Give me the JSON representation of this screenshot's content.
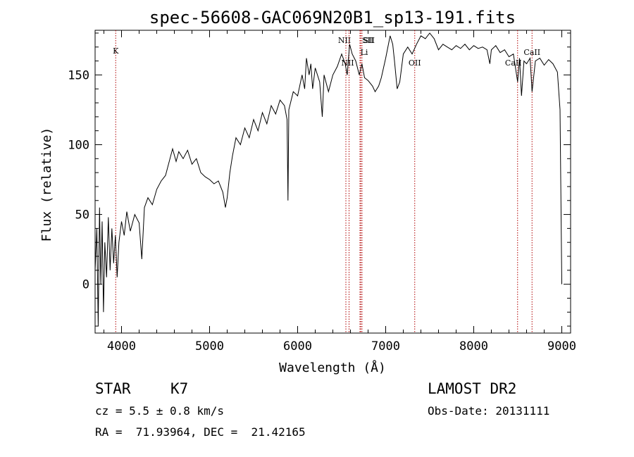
{
  "chart_data": {
    "type": "line",
    "title": "spec-56608-GAC069N20B1_sp13-191.fits",
    "xlabel": "Wavelength (Å)",
    "ylabel": "Flux (relative)",
    "xlim": [
      3700,
      9100
    ],
    "ylim": [
      -35,
      182
    ],
    "x_ticks": [
      4000,
      5000,
      6000,
      7000,
      8000,
      9000
    ],
    "y_ticks": [
      0,
      50,
      100,
      150
    ],
    "grid": false,
    "series": [
      {
        "color": "#000000",
        "points": [
          [
            3700,
            10
          ],
          [
            3720,
            40
          ],
          [
            3735,
            -30
          ],
          [
            3750,
            55
          ],
          [
            3765,
            0
          ],
          [
            3780,
            45
          ],
          [
            3795,
            -20
          ],
          [
            3810,
            30
          ],
          [
            3830,
            5
          ],
          [
            3850,
            48
          ],
          [
            3870,
            10
          ],
          [
            3890,
            40
          ],
          [
            3910,
            15
          ],
          [
            3930,
            35
          ],
          [
            3950,
            5
          ],
          [
            3970,
            30
          ],
          [
            4000,
            45
          ],
          [
            4030,
            35
          ],
          [
            4060,
            52
          ],
          [
            4100,
            38
          ],
          [
            4150,
            50
          ],
          [
            4200,
            44
          ],
          [
            4230,
            18
          ],
          [
            4260,
            55
          ],
          [
            4300,
            62
          ],
          [
            4350,
            57
          ],
          [
            4400,
            68
          ],
          [
            4450,
            74
          ],
          [
            4500,
            78
          ],
          [
            4550,
            90
          ],
          [
            4580,
            97
          ],
          [
            4620,
            88
          ],
          [
            4650,
            95
          ],
          [
            4700,
            90
          ],
          [
            4750,
            96
          ],
          [
            4800,
            86
          ],
          [
            4850,
            90
          ],
          [
            4900,
            80
          ],
          [
            4950,
            77
          ],
          [
            5000,
            75
          ],
          [
            5050,
            72
          ],
          [
            5100,
            74
          ],
          [
            5150,
            66
          ],
          [
            5180,
            55
          ],
          [
            5200,
            62
          ],
          [
            5230,
            80
          ],
          [
            5260,
            92
          ],
          [
            5300,
            105
          ],
          [
            5350,
            100
          ],
          [
            5400,
            112
          ],
          [
            5450,
            105
          ],
          [
            5500,
            118
          ],
          [
            5550,
            110
          ],
          [
            5600,
            123
          ],
          [
            5650,
            115
          ],
          [
            5700,
            128
          ],
          [
            5750,
            122
          ],
          [
            5800,
            132
          ],
          [
            5850,
            128
          ],
          [
            5880,
            118
          ],
          [
            5890,
            60
          ],
          [
            5900,
            125
          ],
          [
            5950,
            138
          ],
          [
            6000,
            135
          ],
          [
            6050,
            150
          ],
          [
            6080,
            140
          ],
          [
            6100,
            162
          ],
          [
            6130,
            150
          ],
          [
            6150,
            158
          ],
          [
            6170,
            140
          ],
          [
            6200,
            155
          ],
          [
            6250,
            145
          ],
          [
            6280,
            120
          ],
          [
            6300,
            150
          ],
          [
            6350,
            138
          ],
          [
            6400,
            150
          ],
          [
            6450,
            156
          ],
          [
            6500,
            165
          ],
          [
            6540,
            158
          ],
          [
            6563,
            150
          ],
          [
            6590,
            172
          ],
          [
            6620,
            165
          ],
          [
            6660,
            160
          ],
          [
            6700,
            150
          ],
          [
            6730,
            158
          ],
          [
            6760,
            148
          ],
          [
            6800,
            146
          ],
          [
            6850,
            142
          ],
          [
            6880,
            138
          ],
          [
            6920,
            142
          ],
          [
            6950,
            148
          ],
          [
            7000,
            162
          ],
          [
            7050,
            178
          ],
          [
            7080,
            172
          ],
          [
            7100,
            160
          ],
          [
            7130,
            140
          ],
          [
            7160,
            145
          ],
          [
            7200,
            165
          ],
          [
            7250,
            170
          ],
          [
            7300,
            165
          ],
          [
            7350,
            172
          ],
          [
            7400,
            178
          ],
          [
            7450,
            176
          ],
          [
            7500,
            180
          ],
          [
            7550,
            176
          ],
          [
            7600,
            168
          ],
          [
            7650,
            172
          ],
          [
            7700,
            170
          ],
          [
            7750,
            168
          ],
          [
            7800,
            171
          ],
          [
            7850,
            169
          ],
          [
            7900,
            172
          ],
          [
            7950,
            168
          ],
          [
            8000,
            171
          ],
          [
            8050,
            169
          ],
          [
            8100,
            170
          ],
          [
            8150,
            168
          ],
          [
            8183,
            158
          ],
          [
            8200,
            168
          ],
          [
            8250,
            171
          ],
          [
            8300,
            166
          ],
          [
            8350,
            168
          ],
          [
            8400,
            163
          ],
          [
            8450,
            165
          ],
          [
            8498,
            145
          ],
          [
            8520,
            162
          ],
          [
            8542,
            135
          ],
          [
            8570,
            160
          ],
          [
            8600,
            158
          ],
          [
            8640,
            162
          ],
          [
            8662,
            138
          ],
          [
            8700,
            160
          ],
          [
            8750,
            162
          ],
          [
            8800,
            157
          ],
          [
            8850,
            161
          ],
          [
            8900,
            158
          ],
          [
            8950,
            152
          ],
          [
            8980,
            125
          ],
          [
            8995,
            30
          ],
          [
            9000,
            0
          ]
        ]
      }
    ],
    "lines": [
      {
        "label": "K",
        "x": 3934
      },
      {
        "label": "NII",
        "x": 6548
      },
      {
        "label": "NII",
        "x": 6584
      },
      {
        "label": "SII",
        "x": 6717
      },
      {
        "label": "SII",
        "x": 6731
      },
      {
        "label": "Li",
        "x": 6708
      },
      {
        "label": "OII",
        "x": 7330
      },
      {
        "label": "CaII",
        "x": 8498
      },
      {
        "label": "CaII",
        "x": 8662
      }
    ],
    "line_color": "#b00000"
  },
  "info": {
    "class": "STAR",
    "subclass": "K7",
    "cz": "cz = 5.5 ± 0.8 km/s",
    "radec": "RA =  71.93964, DEC =  21.42165",
    "survey": "LAMOST DR2",
    "obs_date": "Obs-Date: 20131111"
  }
}
